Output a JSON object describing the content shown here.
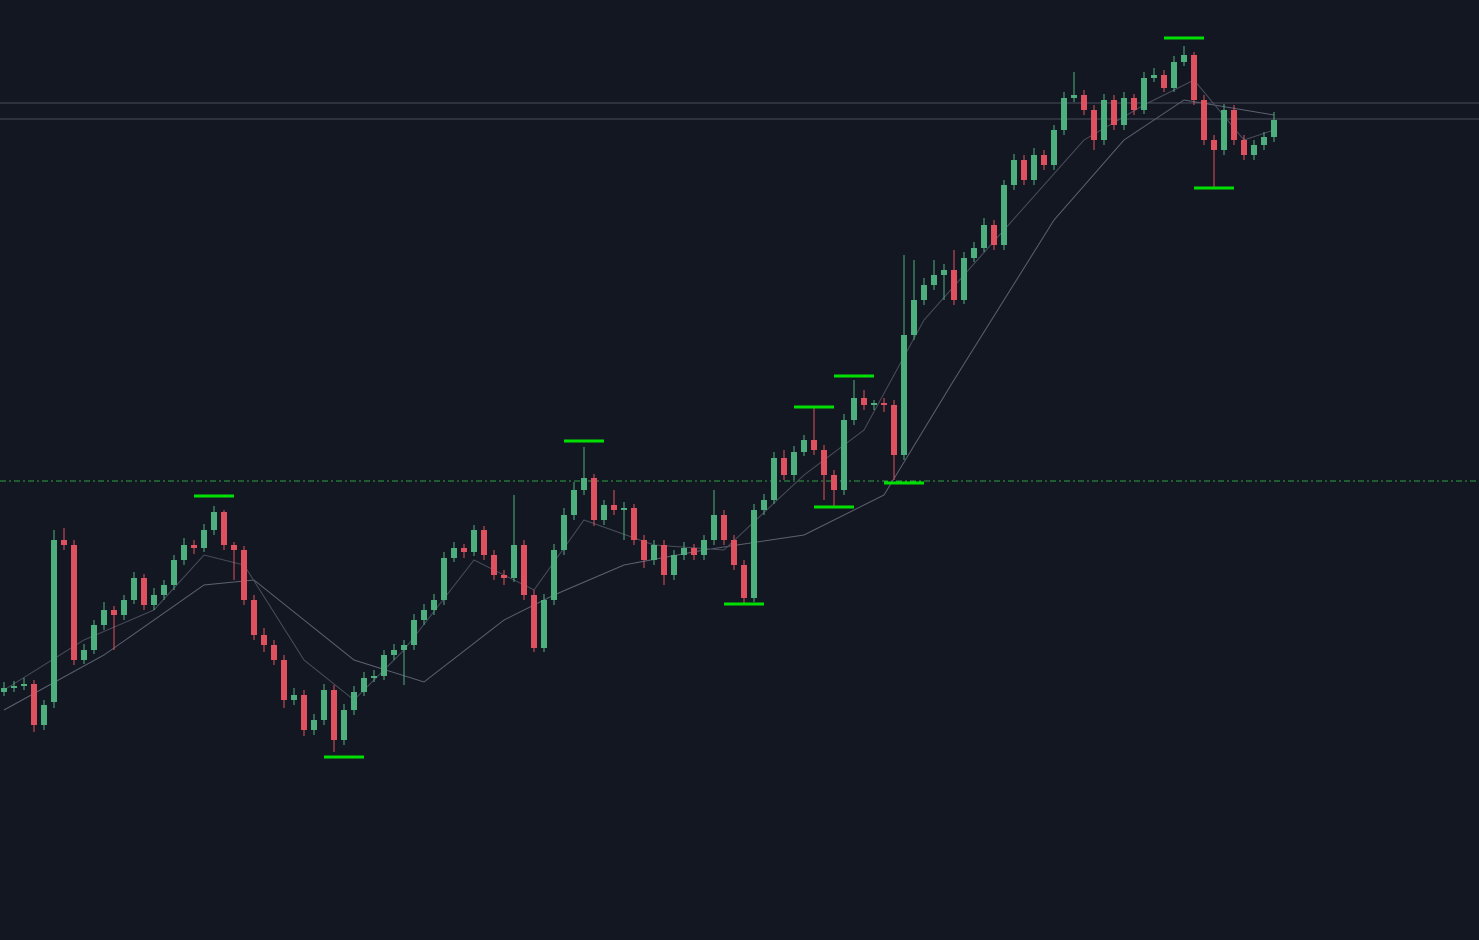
{
  "chart_data": {
    "type": "candlestick",
    "ylim": [
      0,
      940
    ],
    "up_color": "#4caf7d",
    "down_color": "#e0515f",
    "open": [
      248,
      252,
      254,
      256,
      215,
      238,
      400,
      395,
      280,
      290,
      315,
      330,
      325,
      340,
      362,
      335,
      345,
      355,
      380,
      395,
      392,
      410,
      428,
      395,
      390,
      340,
      305,
      295,
      280,
      240,
      245,
      210,
      220,
      250,
      200,
      230,
      248,
      262,
      264,
      285,
      290,
      295,
      320,
      330,
      340,
      382,
      392,
      388,
      410,
      385,
      365,
      362,
      395,
      345,
      292,
      340,
      390,
      425,
      450,
      462,
      420,
      435,
      430,
      432,
      400,
      380,
      395,
      365,
      385,
      392,
      385,
      400,
      425,
      400,
      375,
      342,
      430,
      440,
      482,
      465,
      488,
      500,
      490,
      465,
      450,
      520,
      542,
      535,
      537,
      535,
      485,
      605,
      640,
      655,
      665,
      670,
      640,
      682,
      692,
      715,
      695,
      755,
      780,
      760,
      785,
      775,
      810,
      842,
      845,
      830,
      800,
      840,
      815,
      842,
      830,
      862,
      865,
      852,
      878,
      885,
      840,
      800,
      790,
      830,
      800,
      785,
      795,
      803
    ],
    "high": [
      258,
      259,
      262,
      260,
      240,
      410,
      412,
      400,
      296,
      320,
      338,
      334,
      345,
      368,
      366,
      352,
      360,
      385,
      402,
      400,
      416,
      434,
      430,
      398,
      394,
      345,
      312,
      300,
      285,
      252,
      250,
      226,
      256,
      255,
      236,
      254,
      268,
      270,
      290,
      296,
      300,
      326,
      336,
      346,
      388,
      398,
      396,
      415,
      414,
      390,
      370,
      445,
      400,
      350,
      346,
      396,
      432,
      458,
      493,
      466,
      440,
      450,
      438,
      436,
      405,
      400,
      400,
      390,
      398,
      396,
      405,
      450,
      430,
      405,
      380,
      436,
      446,
      488,
      490,
      494,
      505,
      532,
      495,
      470,
      526,
      560,
      550,
      540,
      542,
      540,
      685,
      680,
      662,
      680,
      676,
      690,
      688,
      698,
      722,
      720,
      760,
      786,
      785,
      792,
      790,
      815,
      848,
      868,
      850,
      835,
      846,
      845,
      848,
      846,
      868,
      872,
      870,
      884,
      894,
      888,
      845,
      805,
      836,
      835,
      805,
      800,
      808,
      828
    ],
    "low": [
      244,
      248,
      250,
      208,
      210,
      232,
      390,
      275,
      276,
      286,
      310,
      290,
      320,
      336,
      330,
      330,
      340,
      350,
      375,
      386,
      388,
      405,
      390,
      360,
      335,
      300,
      288,
      275,
      232,
      235,
      204,
      205,
      215,
      188,
      195,
      225,
      244,
      258,
      260,
      280,
      255,
      290,
      315,
      325,
      335,
      378,
      382,
      384,
      380,
      360,
      355,
      358,
      340,
      288,
      288,
      335,
      385,
      420,
      445,
      414,
      415,
      425,
      400,
      395,
      372,
      375,
      355,
      360,
      380,
      380,
      380,
      395,
      395,
      370,
      336,
      338,
      425,
      436,
      460,
      460,
      484,
      485,
      440,
      432,
      445,
      515,
      530,
      530,
      528,
      460,
      480,
      600,
      635,
      650,
      640,
      635,
      636,
      678,
      688,
      690,
      690,
      750,
      755,
      755,
      770,
      770,
      805,
      838,
      825,
      790,
      795,
      810,
      810,
      825,
      826,
      858,
      848,
      848,
      874,
      835,
      795,
      752,
      785,
      795,
      780,
      780,
      790,
      798
    ],
    "close": [
      252,
      254,
      256,
      215,
      235,
      400,
      395,
      280,
      290,
      315,
      330,
      325,
      340,
      362,
      335,
      345,
      355,
      380,
      395,
      392,
      410,
      428,
      395,
      390,
      340,
      305,
      295,
      280,
      240,
      245,
      210,
      220,
      250,
      200,
      230,
      248,
      262,
      264,
      285,
      290,
      295,
      320,
      330,
      340,
      382,
      392,
      388,
      410,
      385,
      365,
      362,
      395,
      345,
      292,
      340,
      390,
      425,
      450,
      462,
      420,
      435,
      430,
      432,
      400,
      380,
      395,
      365,
      385,
      392,
      385,
      400,
      425,
      400,
      375,
      342,
      430,
      440,
      482,
      465,
      488,
      500,
      490,
      465,
      450,
      520,
      542,
      535,
      537,
      535,
      485,
      605,
      640,
      655,
      665,
      670,
      640,
      682,
      692,
      715,
      695,
      755,
      780,
      760,
      785,
      775,
      810,
      842,
      845,
      830,
      800,
      840,
      815,
      842,
      830,
      862,
      865,
      852,
      878,
      885,
      840,
      800,
      790,
      830,
      800,
      785,
      795,
      803,
      820
    ],
    "ma_lines": [
      {
        "color": "#5d6170",
        "x": [
          0,
          10,
          20,
          25,
          30,
          35,
          42,
          50,
          55,
          62,
          70,
          80,
          88,
          95,
          105,
          112,
          118,
          124,
          127
        ],
        "values": [
          230,
          285,
          355,
          360,
          320,
          280,
          258,
          320,
          345,
          375,
          390,
          405,
          445,
          560,
          720,
          800,
          840,
          830,
          825
        ]
      },
      {
        "color": "#4a4e5c",
        "x": [
          0,
          8,
          15,
          20,
          24,
          30,
          35,
          40,
          47,
          53,
          58,
          65,
          72,
          80,
          86,
          92,
          100,
          108,
          114,
          119,
          124,
          127
        ],
        "values": [
          250,
          300,
          330,
          385,
          375,
          280,
          240,
          290,
          380,
          350,
          420,
          395,
          390,
          465,
          510,
          620,
          710,
          800,
          835,
          860,
          800,
          810
        ]
      }
    ],
    "markers": {
      "color": "#00e000",
      "x": [
        21,
        34,
        58,
        74,
        81,
        83,
        85,
        90,
        118,
        121
      ],
      "values": [
        444,
        183,
        499,
        336,
        533,
        433,
        564,
        457,
        902,
        752
      ]
    },
    "hlines": [
      {
        "value": 837,
        "color": "#4a4e5a",
        "style": "solid"
      },
      {
        "value": 821,
        "color": "#4a4e5a",
        "style": "solid"
      },
      {
        "value": 459,
        "color": "#2ea043",
        "style": "dashdot"
      }
    ]
  }
}
